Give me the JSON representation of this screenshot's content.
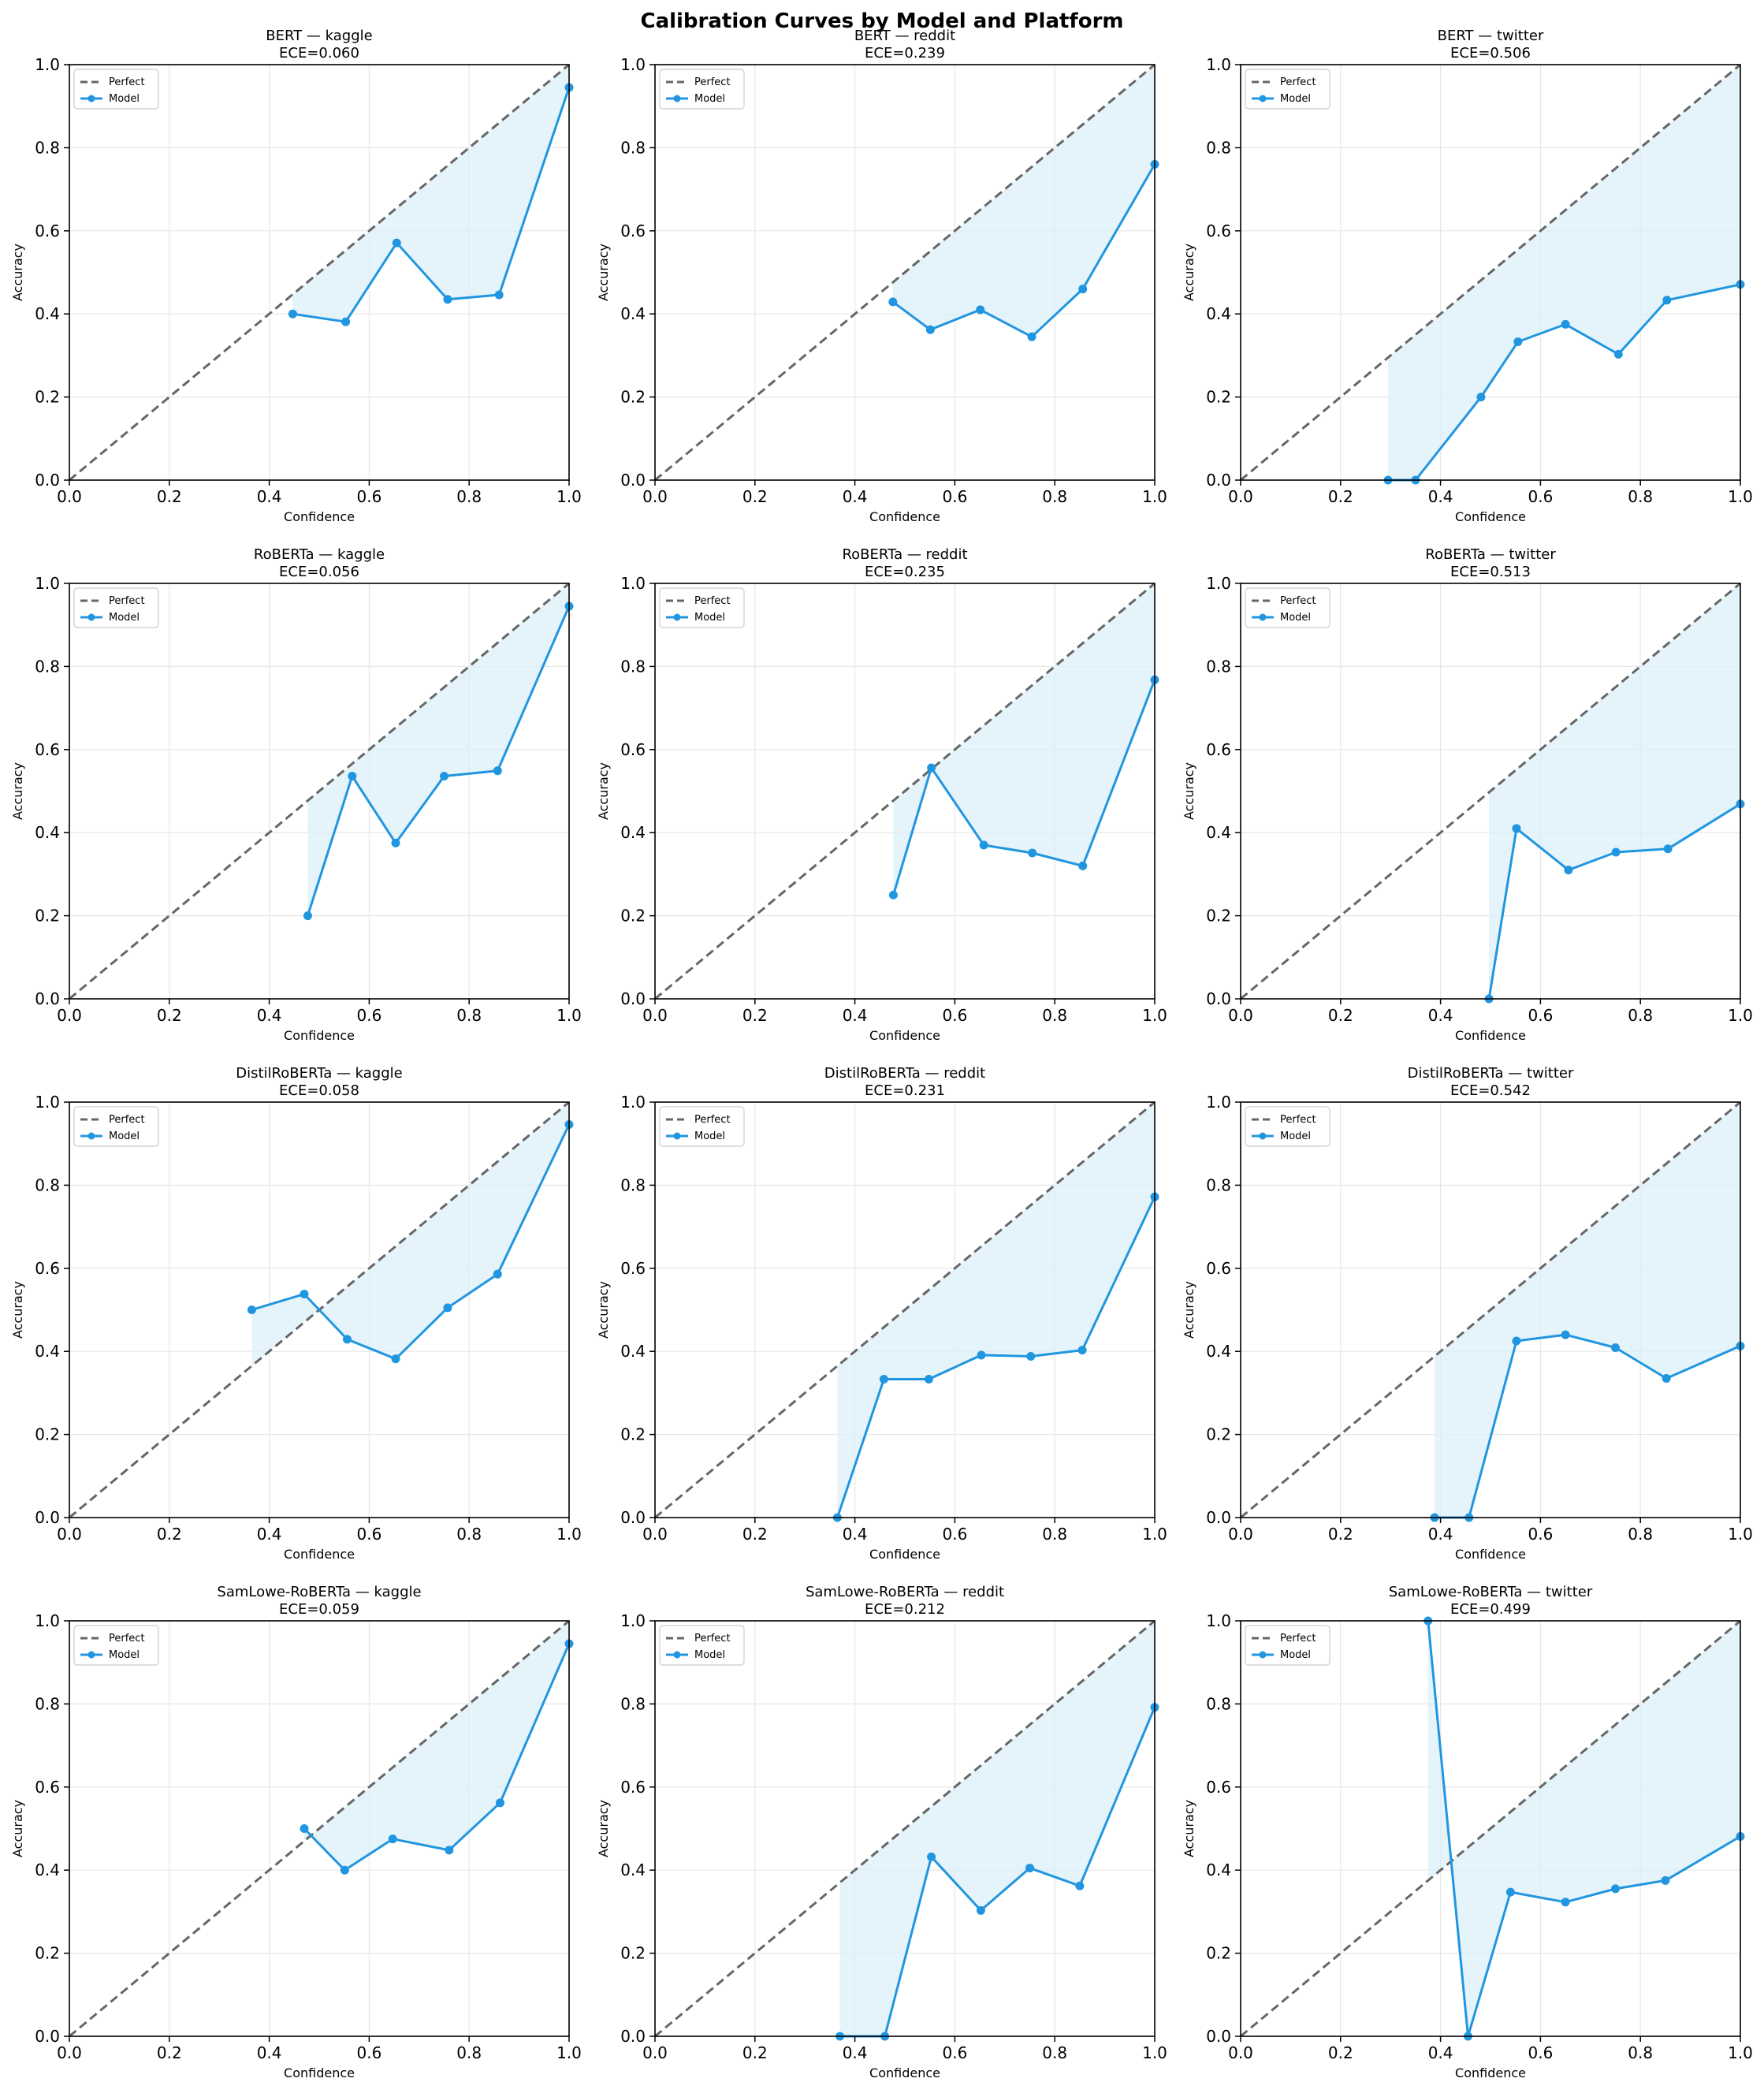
{
  "figure": {
    "title": "Calibration Curves by Model and Platform",
    "colors": {
      "model": "#2196e0",
      "fill": "#dceffa",
      "perfect": "#666666",
      "grid": "#e6e6e6"
    }
  },
  "chart_data": [
    {
      "type": "line",
      "title": "BERT — kaggle",
      "subtitle": "ECE=0.060",
      "xlabel": "Confidence",
      "ylabel": "Accuracy",
      "xlim": [
        0,
        1
      ],
      "ylim": [
        0,
        1
      ],
      "xticks": [
        "0.0",
        "0.2",
        "0.4",
        "0.6",
        "0.8",
        "1.0"
      ],
      "yticks": [
        "0.0",
        "0.2",
        "0.4",
        "0.6",
        "0.8",
        "1.0"
      ],
      "grid": true,
      "legend": {
        "placement": "top-left",
        "entries": [
          "Perfect",
          "Model"
        ]
      },
      "series": [
        {
          "name": "Perfect",
          "x": [
            0,
            1
          ],
          "y": [
            0,
            1
          ]
        },
        {
          "name": "Model",
          "x": [
            0.447,
            0.553,
            0.655,
            0.757,
            0.86,
            1.0
          ],
          "y": [
            0.4,
            0.381,
            0.571,
            0.435,
            0.446,
            0.945
          ]
        }
      ]
    },
    {
      "type": "line",
      "title": "BERT — reddit",
      "subtitle": "ECE=0.239",
      "xlabel": "Confidence",
      "ylabel": "Accuracy",
      "xlim": [
        0,
        1
      ],
      "ylim": [
        0,
        1
      ],
      "xticks": [
        "0.0",
        "0.2",
        "0.4",
        "0.6",
        "0.8",
        "1.0"
      ],
      "yticks": [
        "0.0",
        "0.2",
        "0.4",
        "0.6",
        "0.8",
        "1.0"
      ],
      "grid": true,
      "legend": {
        "placement": "top-left",
        "entries": [
          "Perfect",
          "Model"
        ]
      },
      "series": [
        {
          "name": "Perfect",
          "x": [
            0,
            1
          ],
          "y": [
            0,
            1
          ]
        },
        {
          "name": "Model",
          "x": [
            0.476,
            0.551,
            0.651,
            0.754,
            0.856,
            1.0
          ],
          "y": [
            0.429,
            0.362,
            0.41,
            0.345,
            0.46,
            0.76
          ]
        }
      ]
    },
    {
      "type": "line",
      "title": "BERT — twitter",
      "subtitle": "ECE=0.506",
      "xlabel": "Confidence",
      "ylabel": "Accuracy",
      "xlim": [
        0,
        1
      ],
      "ylim": [
        0,
        1
      ],
      "xticks": [
        "0.0",
        "0.2",
        "0.4",
        "0.6",
        "0.8",
        "1.0"
      ],
      "yticks": [
        "0.0",
        "0.2",
        "0.4",
        "0.6",
        "0.8",
        "1.0"
      ],
      "grid": true,
      "legend": {
        "placement": "top-left",
        "entries": [
          "Perfect",
          "Model"
        ]
      },
      "series": [
        {
          "name": "Perfect",
          "x": [
            0,
            1
          ],
          "y": [
            0,
            1
          ]
        },
        {
          "name": "Model",
          "x": [
            0.295,
            0.35,
            0.481,
            0.555,
            0.65,
            0.756,
            0.853,
            1.0
          ],
          "y": [
            0.0,
            0.0,
            0.2,
            0.333,
            0.375,
            0.303,
            0.433,
            0.471
          ]
        }
      ]
    },
    {
      "type": "line",
      "title": "RoBERTa — kaggle",
      "subtitle": "ECE=0.056",
      "xlabel": "Confidence",
      "ylabel": "Accuracy",
      "xlim": [
        0,
        1
      ],
      "ylim": [
        0,
        1
      ],
      "xticks": [
        "0.0",
        "0.2",
        "0.4",
        "0.6",
        "0.8",
        "1.0"
      ],
      "yticks": [
        "0.0",
        "0.2",
        "0.4",
        "0.6",
        "0.8",
        "1.0"
      ],
      "grid": true,
      "legend": {
        "placement": "top-left",
        "entries": [
          "Perfect",
          "Model"
        ]
      },
      "series": [
        {
          "name": "Perfect",
          "x": [
            0,
            1
          ],
          "y": [
            0,
            1
          ]
        },
        {
          "name": "Model",
          "x": [
            0.477,
            0.566,
            0.653,
            0.75,
            0.857,
            1.0
          ],
          "y": [
            0.2,
            0.536,
            0.375,
            0.536,
            0.549,
            0.945
          ]
        }
      ]
    },
    {
      "type": "line",
      "title": "RoBERTa — reddit",
      "subtitle": "ECE=0.235",
      "xlabel": "Confidence",
      "ylabel": "Accuracy",
      "xlim": [
        0,
        1
      ],
      "ylim": [
        0,
        1
      ],
      "xticks": [
        "0.0",
        "0.2",
        "0.4",
        "0.6",
        "0.8",
        "1.0"
      ],
      "yticks": [
        "0.0",
        "0.2",
        "0.4",
        "0.6",
        "0.8",
        "1.0"
      ],
      "grid": true,
      "legend": {
        "placement": "top-left",
        "entries": [
          "Perfect",
          "Model"
        ]
      },
      "series": [
        {
          "name": "Perfect",
          "x": [
            0,
            1
          ],
          "y": [
            0,
            1
          ]
        },
        {
          "name": "Model",
          "x": [
            0.477,
            0.553,
            0.658,
            0.755,
            0.856,
            1.0
          ],
          "y": [
            0.25,
            0.556,
            0.37,
            0.351,
            0.32,
            0.768
          ]
        }
      ]
    },
    {
      "type": "line",
      "title": "RoBERTa — twitter",
      "subtitle": "ECE=0.513",
      "xlabel": "Confidence",
      "ylabel": "Accuracy",
      "xlim": [
        0,
        1
      ],
      "ylim": [
        0,
        1
      ],
      "xticks": [
        "0.0",
        "0.2",
        "0.4",
        "0.6",
        "0.8",
        "1.0"
      ],
      "yticks": [
        "0.0",
        "0.2",
        "0.4",
        "0.6",
        "0.8",
        "1.0"
      ],
      "grid": true,
      "legend": {
        "placement": "top-left",
        "entries": [
          "Perfect",
          "Model"
        ]
      },
      "series": [
        {
          "name": "Perfect",
          "x": [
            0,
            1
          ],
          "y": [
            0,
            1
          ]
        },
        {
          "name": "Model",
          "x": [
            0.497,
            0.552,
            0.656,
            0.751,
            0.855,
            1.0
          ],
          "y": [
            0.0,
            0.41,
            0.31,
            0.353,
            0.361,
            0.469
          ]
        }
      ]
    },
    {
      "type": "line",
      "title": "DistilRoBERTa — kaggle",
      "subtitle": "ECE=0.058",
      "xlabel": "Confidence",
      "ylabel": "Accuracy",
      "xlim": [
        0,
        1
      ],
      "ylim": [
        0,
        1
      ],
      "xticks": [
        "0.0",
        "0.2",
        "0.4",
        "0.6",
        "0.8",
        "1.0"
      ],
      "yticks": [
        "0.0",
        "0.2",
        "0.4",
        "0.6",
        "0.8",
        "1.0"
      ],
      "grid": true,
      "legend": {
        "placement": "top-left",
        "entries": [
          "Perfect",
          "Model"
        ]
      },
      "series": [
        {
          "name": "Perfect",
          "x": [
            0,
            1
          ],
          "y": [
            0,
            1
          ]
        },
        {
          "name": "Model",
          "x": [
            0.365,
            0.47,
            0.556,
            0.653,
            0.757,
            0.857,
            1.0
          ],
          "y": [
            0.5,
            0.538,
            0.429,
            0.382,
            0.505,
            0.586,
            0.946
          ]
        }
      ]
    },
    {
      "type": "line",
      "title": "DistilRoBERTa — reddit",
      "subtitle": "ECE=0.231",
      "xlabel": "Confidence",
      "ylabel": "Accuracy",
      "xlim": [
        0,
        1
      ],
      "ylim": [
        0,
        1
      ],
      "xticks": [
        "0.0",
        "0.2",
        "0.4",
        "0.6",
        "0.8",
        "1.0"
      ],
      "yticks": [
        "0.0",
        "0.2",
        "0.4",
        "0.6",
        "0.8",
        "1.0"
      ],
      "grid": true,
      "legend": {
        "placement": "top-left",
        "entries": [
          "Perfect",
          "Model"
        ]
      },
      "series": [
        {
          "name": "Perfect",
          "x": [
            0,
            1
          ],
          "y": [
            0,
            1
          ]
        },
        {
          "name": "Model",
          "x": [
            0.365,
            0.458,
            0.548,
            0.653,
            0.752,
            0.855,
            1.0
          ],
          "y": [
            0.0,
            0.333,
            0.333,
            0.391,
            0.388,
            0.403,
            0.772
          ]
        }
      ]
    },
    {
      "type": "line",
      "title": "DistilRoBERTa — twitter",
      "subtitle": "ECE=0.542",
      "xlabel": "Confidence",
      "ylabel": "Accuracy",
      "xlim": [
        0,
        1
      ],
      "ylim": [
        0,
        1
      ],
      "xticks": [
        "0.0",
        "0.2",
        "0.4",
        "0.6",
        "0.8",
        "1.0"
      ],
      "yticks": [
        "0.0",
        "0.2",
        "0.4",
        "0.6",
        "0.8",
        "1.0"
      ],
      "grid": true,
      "legend": {
        "placement": "top-left",
        "entries": [
          "Perfect",
          "Model"
        ]
      },
      "series": [
        {
          "name": "Perfect",
          "x": [
            0,
            1
          ],
          "y": [
            0,
            1
          ]
        },
        {
          "name": "Model",
          "x": [
            0.388,
            0.457,
            0.552,
            0.65,
            0.75,
            0.852,
            1.0
          ],
          "y": [
            0.0,
            0.0,
            0.425,
            0.44,
            0.409,
            0.335,
            0.413
          ]
        }
      ]
    },
    {
      "type": "line",
      "title": "SamLowe-RoBERTa — kaggle",
      "subtitle": "ECE=0.059",
      "xlabel": "Confidence",
      "ylabel": "Accuracy",
      "xlim": [
        0,
        1
      ],
      "ylim": [
        0,
        1
      ],
      "xticks": [
        "0.0",
        "0.2",
        "0.4",
        "0.6",
        "0.8",
        "1.0"
      ],
      "yticks": [
        "0.0",
        "0.2",
        "0.4",
        "0.6",
        "0.8",
        "1.0"
      ],
      "grid": true,
      "legend": {
        "placement": "top-left",
        "entries": [
          "Perfect",
          "Model"
        ]
      },
      "series": [
        {
          "name": "Perfect",
          "x": [
            0,
            1
          ],
          "y": [
            0,
            1
          ]
        },
        {
          "name": "Model",
          "x": [
            0.47,
            0.551,
            0.647,
            0.76,
            0.862,
            1.0
          ],
          "y": [
            0.5,
            0.4,
            0.475,
            0.448,
            0.562,
            0.945
          ]
        }
      ]
    },
    {
      "type": "line",
      "title": "SamLowe-RoBERTa — reddit",
      "subtitle": "ECE=0.212",
      "xlabel": "Confidence",
      "ylabel": "Accuracy",
      "xlim": [
        0,
        1
      ],
      "ylim": [
        0,
        1
      ],
      "xticks": [
        "0.0",
        "0.2",
        "0.4",
        "0.6",
        "0.8",
        "1.0"
      ],
      "yticks": [
        "0.0",
        "0.2",
        "0.4",
        "0.6",
        "0.8",
        "1.0"
      ],
      "grid": true,
      "legend": {
        "placement": "top-left",
        "entries": [
          "Perfect",
          "Model"
        ]
      },
      "series": [
        {
          "name": "Perfect",
          "x": [
            0,
            1
          ],
          "y": [
            0,
            1
          ]
        },
        {
          "name": "Model",
          "x": [
            0.37,
            0.46,
            0.553,
            0.652,
            0.75,
            0.85,
            1.0
          ],
          "y": [
            0.0,
            0.0,
            0.432,
            0.303,
            0.405,
            0.362,
            0.792
          ]
        }
      ]
    },
    {
      "type": "line",
      "title": "SamLowe-RoBERTa — twitter",
      "subtitle": "ECE=0.499",
      "xlabel": "Confidence",
      "ylabel": "Accuracy",
      "xlim": [
        0,
        1
      ],
      "ylim": [
        0,
        1
      ],
      "xticks": [
        "0.0",
        "0.2",
        "0.4",
        "0.6",
        "0.8",
        "1.0"
      ],
      "yticks": [
        "0.0",
        "0.2",
        "0.4",
        "0.6",
        "0.8",
        "1.0"
      ],
      "grid": true,
      "legend": {
        "placement": "top-left",
        "entries": [
          "Perfect",
          "Model"
        ]
      },
      "series": [
        {
          "name": "Perfect",
          "x": [
            0,
            1
          ],
          "y": [
            0,
            1
          ]
        },
        {
          "name": "Model",
          "x": [
            0.375,
            0.455,
            0.54,
            0.65,
            0.75,
            0.85,
            1.0
          ],
          "y": [
            1.0,
            0.0,
            0.347,
            0.323,
            0.355,
            0.375,
            0.481
          ]
        }
      ]
    }
  ]
}
